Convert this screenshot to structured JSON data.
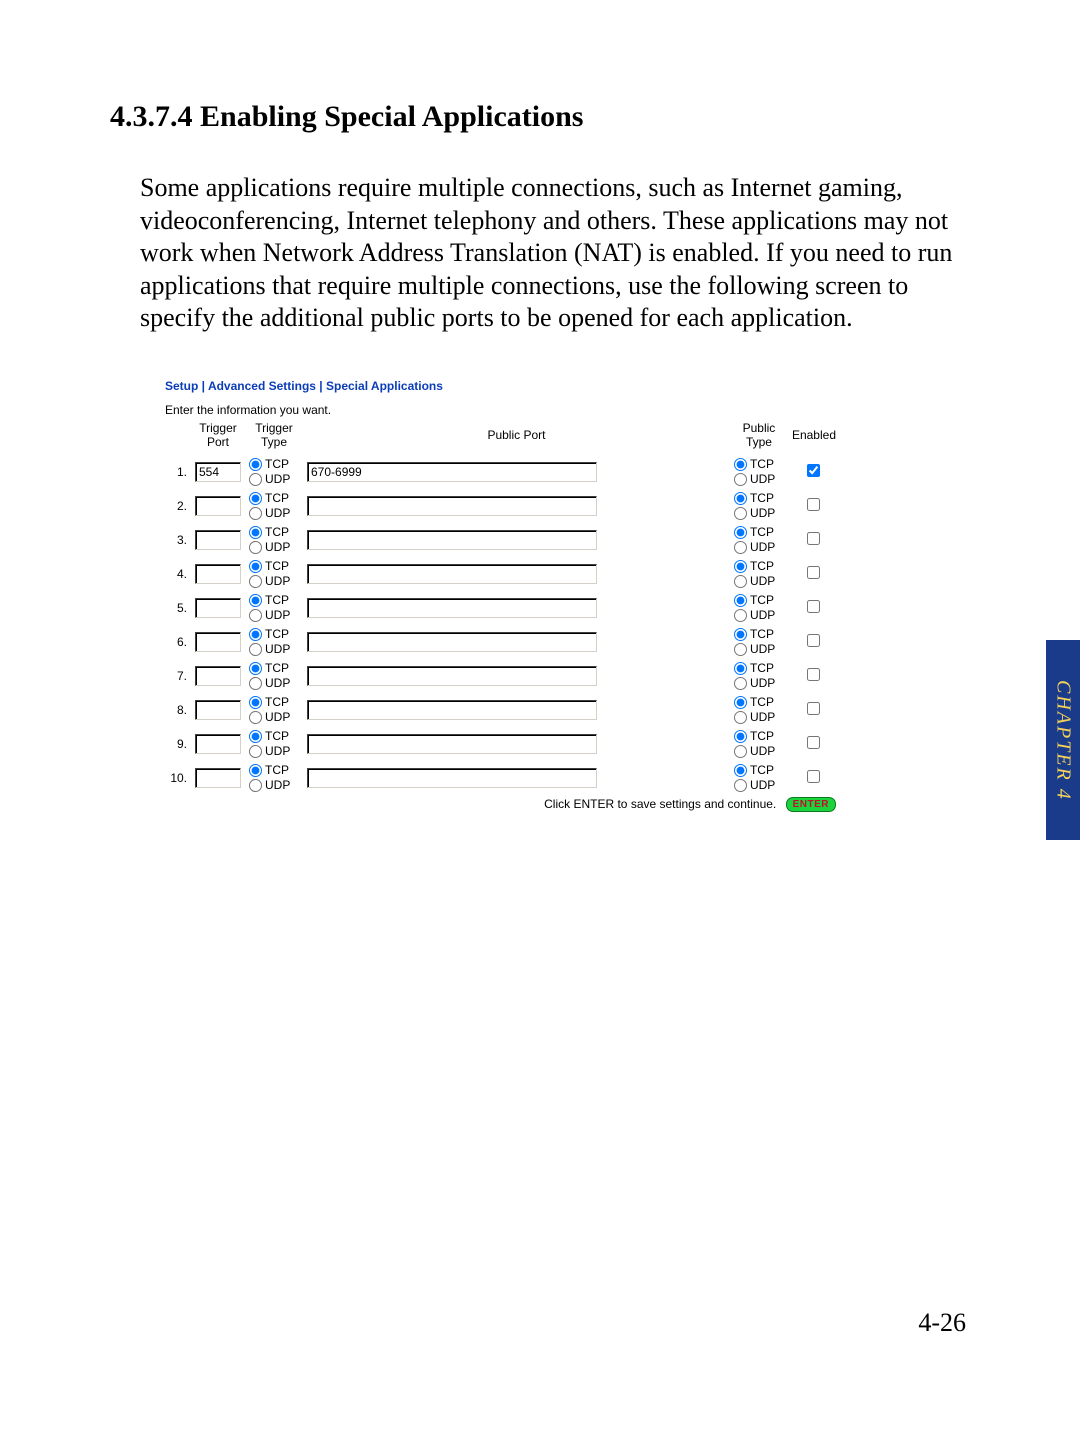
{
  "section": {
    "number": "4.3.7.4",
    "title": "Enabling Special Applications",
    "full_title": "4.3.7.4 Enabling Special Applications"
  },
  "paragraph": "Some applications require multiple connections, such as Internet gaming, videoconferencing, Internet telephony and others. These applications may not work when Network Address Translation (NAT) is enabled. If you need to run applications that require multiple connections, use the following screen to specify the additional public ports to be opened for each application.",
  "breadcrumb": {
    "setup": "Setup",
    "sep1": " | ",
    "adv": "Advanced Settings",
    "sep2": " | ",
    "current": "Special Applications"
  },
  "instruction": "Enter the information you want.",
  "headers": {
    "trigger_port": "Trigger Port",
    "trigger_type": "Trigger Type",
    "public_port": "Public Port",
    "public_type": "Public Type",
    "enabled": "Enabled"
  },
  "radio_labels": {
    "tcp": "TCP",
    "udp": "UDP"
  },
  "rows": [
    {
      "idx": "1.",
      "trigger_port": "554",
      "trigger_type": "TCP",
      "public_port": "670-6999",
      "public_type": "TCP",
      "enabled": true
    },
    {
      "idx": "2.",
      "trigger_port": "",
      "trigger_type": "TCP",
      "public_port": "",
      "public_type": "TCP",
      "enabled": false
    },
    {
      "idx": "3.",
      "trigger_port": "",
      "trigger_type": "TCP",
      "public_port": "",
      "public_type": "TCP",
      "enabled": false
    },
    {
      "idx": "4.",
      "trigger_port": "",
      "trigger_type": "TCP",
      "public_port": "",
      "public_type": "TCP",
      "enabled": false
    },
    {
      "idx": "5.",
      "trigger_port": "",
      "trigger_type": "TCP",
      "public_port": "",
      "public_type": "TCP",
      "enabled": false
    },
    {
      "idx": "6.",
      "trigger_port": "",
      "trigger_type": "TCP",
      "public_port": "",
      "public_type": "TCP",
      "enabled": false
    },
    {
      "idx": "7.",
      "trigger_port": "",
      "trigger_type": "TCP",
      "public_port": "",
      "public_type": "TCP",
      "enabled": false
    },
    {
      "idx": "8.",
      "trigger_port": "",
      "trigger_type": "TCP",
      "public_port": "",
      "public_type": "TCP",
      "enabled": false
    },
    {
      "idx": "9.",
      "trigger_port": "",
      "trigger_type": "TCP",
      "public_port": "",
      "public_type": "TCP",
      "enabled": false
    },
    {
      "idx": "10.",
      "trigger_port": "",
      "trigger_type": "TCP",
      "public_port": "",
      "public_type": "TCP",
      "enabled": false
    }
  ],
  "footer_text": "Click ENTER to save settings and continue.",
  "enter_label": "ENTER",
  "side_tab": "CHAPTER 4",
  "page_number": "4-26",
  "colors": {
    "breadcrumb": "#0b3db8",
    "side_tab_bg": "#1a3a8a",
    "side_tab_fg": "#f4d25a",
    "enter_bg": "#19d43a",
    "enter_fg": "#c01030"
  }
}
